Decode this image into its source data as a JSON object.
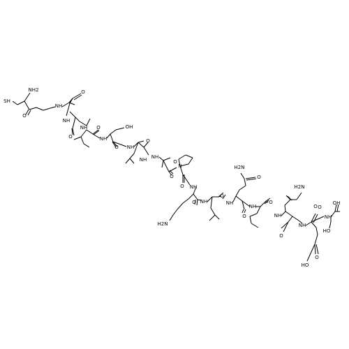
{
  "molecule": {
    "colors": {
      "bond": "#000000",
      "atom_label": "#000000",
      "background": "#ffffff"
    },
    "labels": {
      "SH": "SH",
      "NH2": "NH2",
      "O": "O",
      "NH": "NH",
      "OH": "OH",
      "N": "N",
      "H2N": "H2N",
      "HO": "HO"
    }
  }
}
